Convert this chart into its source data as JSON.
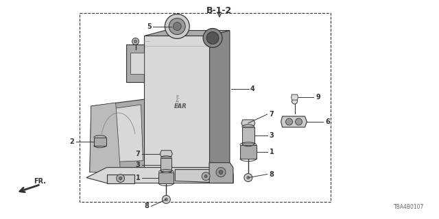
{
  "title": "B-1-2",
  "part_number": "TBA4B0107",
  "fr_label": "FR.",
  "background_color": "#ffffff",
  "fig_width": 6.4,
  "fig_height": 3.2,
  "dpi": 100,
  "line_color": "#333333",
  "shade_light": "#d8d8d8",
  "shade_mid": "#aaaaaa",
  "shade_dark": "#888888",
  "shade_darker": "#666666"
}
